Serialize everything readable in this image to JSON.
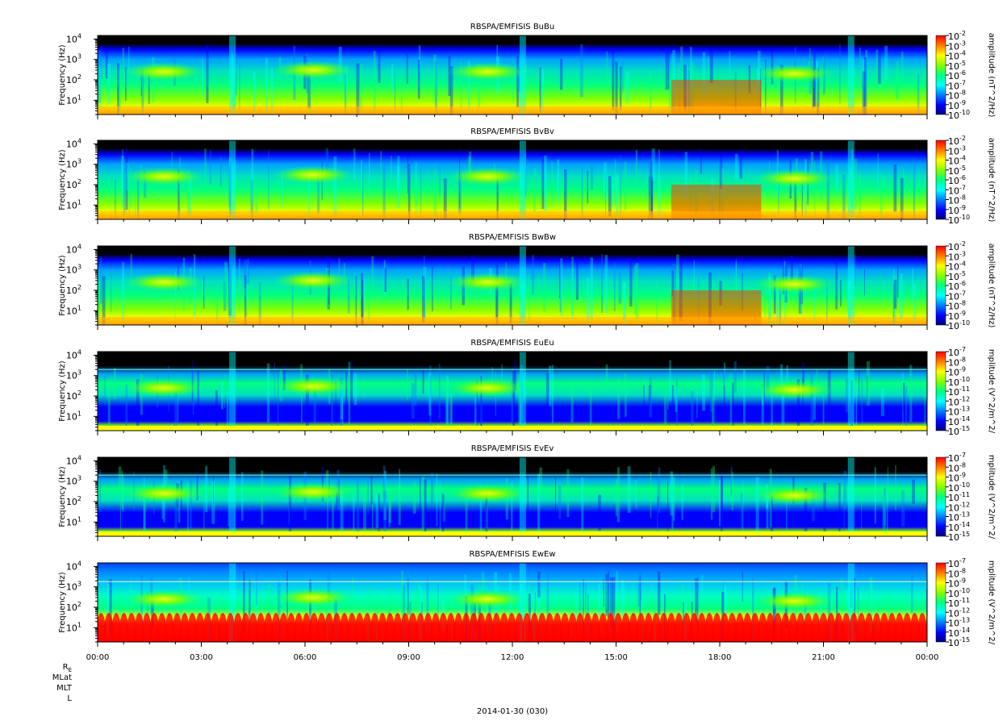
{
  "chart_data": {
    "type": "heatmap",
    "x_tick_labels": [
      "00:00",
      "03:00",
      "06:00",
      "09:00",
      "12:00",
      "15:00",
      "18:00",
      "21:00",
      "00:00"
    ],
    "x_range_hours": [
      0,
      24
    ],
    "x_minor_ticks_per_major": 4,
    "ephemeris_labels": {
      "re_main": "R",
      "re_sub": "E",
      "mlat": "MLat",
      "mlt": "MLT",
      "l": "L"
    },
    "xlabel": "2014-01-30 (030)",
    "y_scale": "log",
    "ylim_hz": [
      2,
      15000
    ],
    "colorscale": [
      "#000080",
      "#0000ff",
      "#0080ff",
      "#00ffff",
      "#00ff80",
      "#80ff00",
      "#ffff00",
      "#ff8000",
      "#ff0000"
    ],
    "panels": [
      {
        "title": "RBSPA/EMFISIS  BuBu",
        "ylabel": "Frequency (Hz)",
        "colorbar_label": "amplitude (nT^2/Hz)",
        "colorbar_ticks": [
          "-2",
          "-3",
          "-4",
          "-5",
          "-6",
          "-7",
          "-8",
          "-9",
          "-10"
        ],
        "kind": "B"
      },
      {
        "title": "RBSPA/EMFISIS  BvBv",
        "ylabel": "Frequency (Hz)",
        "colorbar_label": "amplitude (nT^2/Hz)",
        "colorbar_ticks": [
          "-2",
          "-3",
          "-4",
          "-5",
          "-6",
          "-7",
          "-8",
          "-9",
          "-10"
        ],
        "kind": "B"
      },
      {
        "title": "RBSPA/EMFISIS  BwBw",
        "ylabel": "Frequency (Hz)",
        "colorbar_label": "amplitude (nT^2/Hz)",
        "colorbar_ticks": [
          "-2",
          "-3",
          "-4",
          "-5",
          "-6",
          "-7",
          "-8",
          "-9",
          "-10"
        ],
        "kind": "B"
      },
      {
        "title": "RBSPA/EMFISIS  EuEu",
        "ylabel": "Frequency (Hz)",
        "colorbar_label": "mplitude (V^2/m^2/",
        "colorbar_ticks": [
          "-7",
          "-8",
          "-9",
          "-10",
          "-11",
          "-12",
          "-13",
          "-14",
          "-15"
        ],
        "kind": "E"
      },
      {
        "title": "RBSPA/EMFISIS  EvEv",
        "ylabel": "Frequency (Hz)",
        "colorbar_label": "mplitude (V^2/m^2/",
        "colorbar_ticks": [
          "-7",
          "-8",
          "-9",
          "-10",
          "-11",
          "-12",
          "-13",
          "-14",
          "-15"
        ],
        "kind": "E"
      },
      {
        "title": "RBSPA/EMFISIS  EwEw",
        "ylabel": "Frequency (Hz)",
        "colorbar_label": "mplitude (V^2/m^2/",
        "colorbar_ticks": [
          "-7",
          "-8",
          "-9",
          "-10",
          "-11",
          "-12",
          "-13",
          "-14",
          "-15"
        ],
        "kind": "Ew"
      }
    ],
    "y_tick_labels": [
      {
        "exp": "4",
        "hz": 10000
      },
      {
        "exp": "3",
        "hz": 1000
      },
      {
        "exp": "2",
        "hz": 100
      },
      {
        "exp": "1",
        "hz": 10
      }
    ],
    "y_tick_base": "10",
    "colorbar_tick_base": "10"
  }
}
